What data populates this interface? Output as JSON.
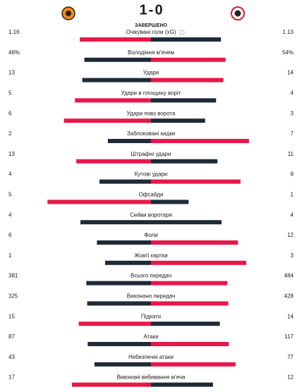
{
  "match": {
    "home_score": 1,
    "away_score": 0,
    "status": "ЗАВЕРШЕНО"
  },
  "stats": [
    {
      "label": "Очікувані голи (xG)",
      "home": 1.16,
      "away": 1.13
    },
    {
      "label": "Володіння м'ячем",
      "home": 46,
      "away": 54,
      "home_label": "46%",
      "away_label": "54%"
    },
    {
      "label": "Удари",
      "home": 13,
      "away": 14
    },
    {
      "label": "Удари в площину воріт",
      "home": 5,
      "away": 4
    },
    {
      "label": "Удари повз ворота",
      "home": 6,
      "away": 3
    },
    {
      "label": "Заблоковані кидки",
      "home": 2,
      "away": 7
    },
    {
      "label": "Штрафні удари",
      "home": 13,
      "away": 11
    },
    {
      "label": "Кутові удари",
      "home": 4,
      "away": 9
    },
    {
      "label": "Офсайди",
      "home": 5,
      "away": 1
    },
    {
      "label": "Сейви воротаря",
      "home": 4,
      "away": 4
    },
    {
      "label": "Фоли",
      "home": 6,
      "away": 12
    },
    {
      "label": "Жовті картки",
      "home": 1,
      "away": 3
    },
    {
      "label": "Всього передач",
      "home": 381,
      "away": 484
    },
    {
      "label": "Виконано передач",
      "home": 325,
      "away": 428
    },
    {
      "label": "Підкати",
      "home": 15,
      "away": 14
    },
    {
      "label": "Атаки",
      "home": 87,
      "away": 117
    },
    {
      "label": "Небезпечні атаки",
      "home": 43,
      "away": 77
    },
    {
      "label": "Виконані вибивання м'яча",
      "home": 17,
      "away": 12
    }
  ]
}
